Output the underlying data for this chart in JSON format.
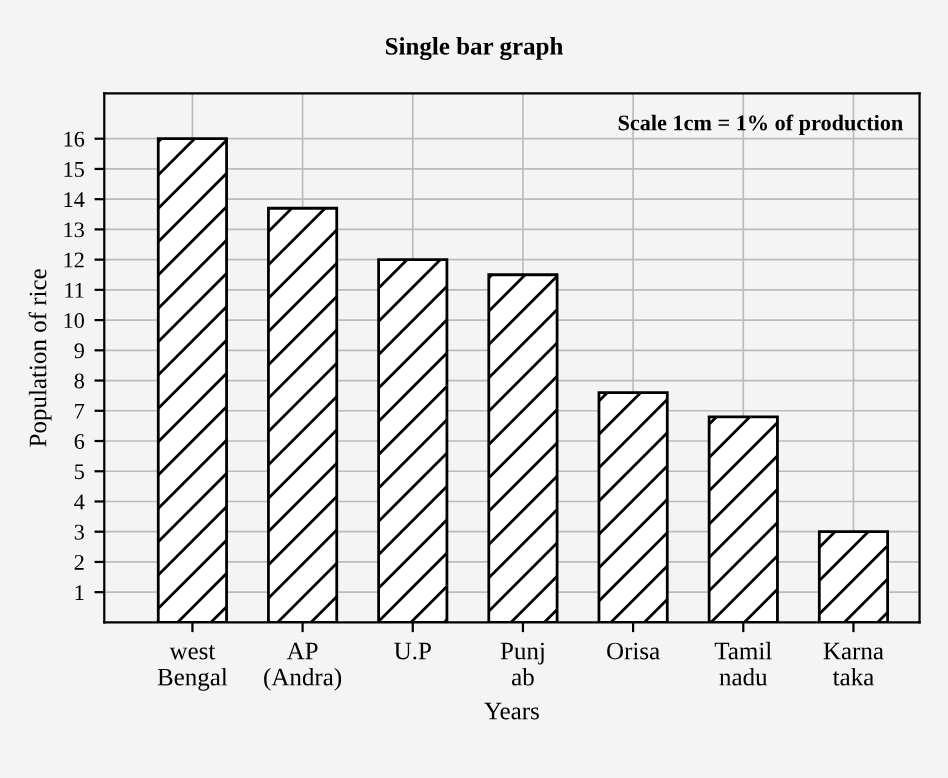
{
  "chart_data": {
    "type": "bar",
    "title": "Single bar graph",
    "xlabel": "Years",
    "ylabel": "Population of rice",
    "annotations": [
      "Scale 1cm = 1% of production"
    ],
    "categories": [
      "west\nBengal",
      "AP\n(Andra)",
      "U.P",
      "Punj\nab",
      "Orisa",
      "Tamil\nnadu",
      "Karna\ntaka"
    ],
    "values": [
      16,
      13.7,
      12.0,
      11.5,
      7.6,
      6.8,
      3.0
    ],
    "color": "#000000",
    "ylim": [
      0,
      17.5
    ],
    "yticks": [
      1,
      2,
      3,
      4,
      5,
      6,
      7,
      8,
      9,
      10,
      11,
      12,
      13,
      14,
      15,
      16
    ],
    "grid": true
  }
}
